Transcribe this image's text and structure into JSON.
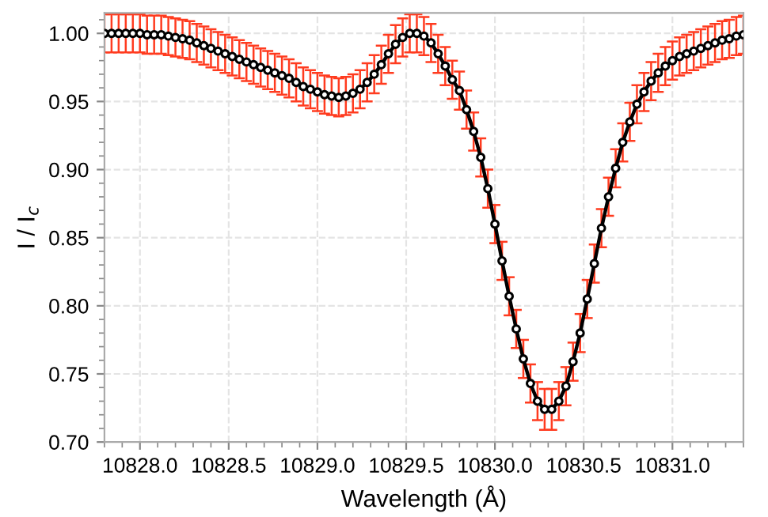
{
  "chart_data": {
    "type": "line",
    "xlabel": "Wavelength (Å)",
    "ylabel": "I / I$_{c}$",
    "x": [
      10827.8,
      10827.84,
      10827.88,
      10827.92,
      10827.96,
      10828.0,
      10828.04,
      10828.08,
      10828.12,
      10828.16,
      10828.2,
      10828.24,
      10828.28,
      10828.32,
      10828.36,
      10828.4,
      10828.44,
      10828.48,
      10828.52,
      10828.56,
      10828.6,
      10828.64,
      10828.68,
      10828.72,
      10828.76,
      10828.8,
      10828.84,
      10828.88,
      10828.92,
      10828.96,
      10829.0,
      10829.04,
      10829.08,
      10829.12,
      10829.16,
      10829.2,
      10829.24,
      10829.28,
      10829.32,
      10829.36,
      10829.4,
      10829.44,
      10829.48,
      10829.52,
      10829.56,
      10829.6,
      10829.64,
      10829.68,
      10829.72,
      10829.76,
      10829.8,
      10829.84,
      10829.88,
      10829.92,
      10829.96,
      10830.0,
      10830.04,
      10830.08,
      10830.12,
      10830.16,
      10830.2,
      10830.24,
      10830.28,
      10830.32,
      10830.36,
      10830.4,
      10830.44,
      10830.48,
      10830.52,
      10830.56,
      10830.6,
      10830.64,
      10830.68,
      10830.72,
      10830.76,
      10830.8,
      10830.84,
      10830.88,
      10830.92,
      10830.96,
      10831.0,
      10831.04,
      10831.08,
      10831.12,
      10831.16,
      10831.2,
      10831.24,
      10831.28,
      10831.32,
      10831.36,
      10831.4
    ],
    "series": [
      {
        "color": "#000000",
        "values": [
          1.0,
          1.0,
          1.0,
          1.0,
          1.0,
          1.0,
          0.999,
          0.999,
          0.999,
          0.998,
          0.997,
          0.996,
          0.995,
          0.993,
          0.991,
          0.989,
          0.987,
          0.985,
          0.983,
          0.981,
          0.979,
          0.977,
          0.975,
          0.973,
          0.971,
          0.969,
          0.967,
          0.964,
          0.961,
          0.959,
          0.957,
          0.955,
          0.954,
          0.953,
          0.954,
          0.956,
          0.959,
          0.964,
          0.97,
          0.977,
          0.985,
          0.992,
          0.997,
          1.0,
          1.0,
          0.998,
          0.993,
          0.985,
          0.976,
          0.966,
          0.958,
          0.944,
          0.928,
          0.909,
          0.886,
          0.86,
          0.833,
          0.807,
          0.783,
          0.761,
          0.743,
          0.73,
          0.724,
          0.724,
          0.73,
          0.741,
          0.759,
          0.78,
          0.805,
          0.831,
          0.857,
          0.88,
          0.901,
          0.92,
          0.935,
          0.948,
          0.957,
          0.965,
          0.971,
          0.976,
          0.98,
          0.983,
          0.985,
          0.987,
          0.989,
          0.991,
          0.993,
          0.995,
          0.996,
          0.998,
          0.999
        ],
        "errors": [
          0.014,
          0.014,
          0.014,
          0.014,
          0.014,
          0.014,
          0.014,
          0.014,
          0.014,
          0.014,
          0.014,
          0.014,
          0.014,
          0.014,
          0.014,
          0.014,
          0.014,
          0.014,
          0.014,
          0.014,
          0.014,
          0.014,
          0.014,
          0.014,
          0.014,
          0.014,
          0.014,
          0.014,
          0.014,
          0.014,
          0.014,
          0.014,
          0.014,
          0.014,
          0.014,
          0.014,
          0.014,
          0.014,
          0.014,
          0.014,
          0.014,
          0.014,
          0.014,
          0.014,
          0.014,
          0.014,
          0.014,
          0.014,
          0.014,
          0.014,
          0.014,
          0.014,
          0.014,
          0.014,
          0.014,
          0.014,
          0.014,
          0.014,
          0.014,
          0.014,
          0.014,
          0.014,
          0.015,
          0.015,
          0.014,
          0.014,
          0.014,
          0.014,
          0.014,
          0.014,
          0.014,
          0.014,
          0.014,
          0.014,
          0.014,
          0.014,
          0.014,
          0.014,
          0.014,
          0.014,
          0.014,
          0.014,
          0.014,
          0.014,
          0.014,
          0.014,
          0.014,
          0.014,
          0.014,
          0.014,
          0.014
        ]
      }
    ],
    "xlim": [
      10827.8,
      10831.4
    ],
    "ylim": [
      0.7,
      1.015
    ],
    "xticks": [
      {
        "value": 10828.0,
        "label": "10828.0"
      },
      {
        "value": 10828.5,
        "label": "10828.5"
      },
      {
        "value": 10829.0,
        "label": "10829.0"
      },
      {
        "value": 10829.5,
        "label": "10829.5"
      },
      {
        "value": 10830.0,
        "label": "10830.0"
      },
      {
        "value": 10830.5,
        "label": "10830.5"
      },
      {
        "value": 10831.0,
        "label": "10831.0"
      }
    ],
    "yticks": [
      {
        "value": 0.7,
        "label": "0.70"
      },
      {
        "value": 0.75,
        "label": "0.75"
      },
      {
        "value": 0.8,
        "label": "0.80"
      },
      {
        "value": 0.85,
        "label": "0.85"
      },
      {
        "value": 0.9,
        "label": "0.90"
      },
      {
        "value": 0.95,
        "label": "0.95"
      },
      {
        "value": 1.0,
        "label": "1.00"
      }
    ],
    "grid": true,
    "marker": "circle",
    "line_style": "solid"
  }
}
